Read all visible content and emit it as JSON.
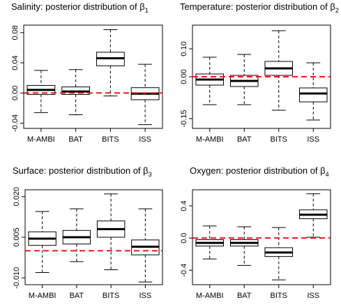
{
  "chart_data": [
    {
      "type": "boxplot",
      "title_prefix": "Salinity: posterior distribution of ",
      "title_symbol": "β",
      "title_subscript": "1",
      "categories": [
        "M-AMBI",
        "BAT",
        "BITS",
        "ISS"
      ],
      "boxes": [
        {
          "min": -0.026,
          "q1": -0.002,
          "median": 0.004,
          "q3": 0.01,
          "max": 0.03
        },
        {
          "min": -0.029,
          "q1": -0.002,
          "median": 0.002,
          "q3": 0.008,
          "max": 0.031
        },
        {
          "min": -0.004,
          "q1": 0.036,
          "median": 0.046,
          "q3": 0.054,
          "max": 0.084
        },
        {
          "min": -0.042,
          "q1": -0.009,
          "median": -0.001,
          "q3": 0.007,
          "max": 0.038
        }
      ],
      "yticks": [
        -0.04,
        0.0,
        0.04,
        0.08
      ],
      "ytick_labels": [
        "-0.04",
        "0.00",
        "0.04",
        "0.08"
      ],
      "ylim": [
        -0.047,
        0.09
      ],
      "reference_line": 0
    },
    {
      "type": "boxplot",
      "title_prefix": "Temperature: posterior distribution of ",
      "title_symbol": "β",
      "title_subscript": "2",
      "categories": [
        "M-AMBI",
        "BAT",
        "BITS",
        "ISS"
      ],
      "boxes": [
        {
          "min": -0.1,
          "q1": -0.03,
          "median": -0.01,
          "q3": 0.01,
          "max": 0.07
        },
        {
          "min": -0.1,
          "q1": -0.035,
          "median": -0.015,
          "q3": 0.005,
          "max": 0.08
        },
        {
          "min": -0.12,
          "q1": 0.005,
          "median": 0.03,
          "q3": 0.055,
          "max": 0.165
        },
        {
          "min": -0.155,
          "q1": -0.09,
          "median": -0.06,
          "q3": -0.04,
          "max": 0.05
        }
      ],
      "yticks": [
        -0.15,
        0.0,
        0.1
      ],
      "ytick_labels": [
        "-0.15",
        "0.00",
        "0.10"
      ],
      "ylim": [
        -0.185,
        0.185
      ],
      "reference_line": 0
    },
    {
      "type": "boxplot",
      "title_prefix": "Surface: posterior distribution of ",
      "title_symbol": "β",
      "title_subscript": "3",
      "categories": [
        "M-AMBI",
        "BAT",
        "BITS",
        "ISS"
      ],
      "boxes": [
        {
          "min": -0.008,
          "q1": 0.002,
          "median": 0.0045,
          "q3": 0.007,
          "max": 0.0145
        },
        {
          "min": -0.004,
          "q1": 0.0025,
          "median": 0.005,
          "q3": 0.0075,
          "max": 0.0155
        },
        {
          "min": -0.007,
          "q1": 0.005,
          "median": 0.008,
          "q3": 0.011,
          "max": 0.021
        },
        {
          "min": -0.0115,
          "q1": -0.0015,
          "median": 0.0015,
          "q3": 0.004,
          "max": 0.0155
        }
      ],
      "yticks": [
        -0.01,
        0.005,
        0.02
      ],
      "ytick_labels": [
        "-0.010",
        "0.005",
        "0.020"
      ],
      "ylim": [
        -0.0125,
        0.0225
      ],
      "reference_line": 0
    },
    {
      "type": "boxplot",
      "title_prefix": "Oxygen: posterior distribution of ",
      "title_symbol": "β",
      "title_subscript": "4",
      "categories": [
        "M-AMBI",
        "BAT",
        "BITS",
        "ISS"
      ],
      "boxes": [
        {
          "min": -0.26,
          "q1": -0.1,
          "median": -0.06,
          "q3": -0.02,
          "max": 0.15
        },
        {
          "min": -0.34,
          "q1": -0.1,
          "median": -0.06,
          "q3": -0.02,
          "max": 0.14
        },
        {
          "min": -0.52,
          "q1": -0.23,
          "median": -0.18,
          "q3": -0.12,
          "max": 0.13
        },
        {
          "min": 0.01,
          "q1": 0.24,
          "median": 0.29,
          "q3": 0.35,
          "max": 0.55
        }
      ],
      "yticks": [
        -0.4,
        0.0,
        0.4
      ],
      "ytick_labels": [
        "-0.4",
        "0.0",
        "0.4"
      ],
      "ylim": [
        -0.58,
        0.6
      ],
      "reference_line": 0
    }
  ],
  "colors": {
    "box_stroke": "#000000",
    "median": "#000000",
    "reference_line": "#e41a1c",
    "axis": "#000000"
  }
}
